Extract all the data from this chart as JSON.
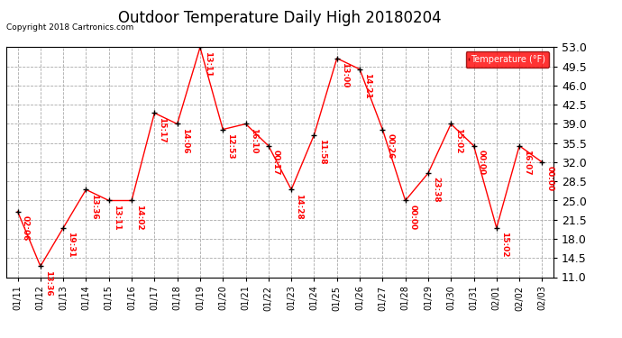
{
  "title": "Outdoor Temperature Daily High 20180204",
  "copyright": "Copyright 2018 Cartronics.com",
  "legend_label": "Temperature (°F)",
  "dates": [
    "01/11",
    "01/12",
    "01/13",
    "01/14",
    "01/15",
    "01/16",
    "01/17",
    "01/18",
    "01/19",
    "01/20",
    "01/21",
    "01/22",
    "01/23",
    "01/24",
    "01/25",
    "01/26",
    "01/27",
    "01/28",
    "01/29",
    "01/30",
    "01/31",
    "02/01",
    "02/02",
    "02/03"
  ],
  "values": [
    23.0,
    13.0,
    20.0,
    27.0,
    25.0,
    25.0,
    41.0,
    39.0,
    53.0,
    38.0,
    39.0,
    35.0,
    27.0,
    37.0,
    51.0,
    49.0,
    38.0,
    25.0,
    30.0,
    39.0,
    35.0,
    20.0,
    35.0,
    32.0
  ],
  "annotations": [
    "02:06",
    "13:36",
    "19:31",
    "13:36",
    "13:11",
    "14:02",
    "15:17",
    "14:06",
    "13:11",
    "12:53",
    "16:10",
    "00:17",
    "14:28",
    "11:58",
    "13:00",
    "14:21",
    "00:26",
    "00:00",
    "23:38",
    "15:02",
    "00:00",
    "15:02",
    "16:07",
    "00:00"
  ],
  "ylim": [
    11.0,
    53.0
  ],
  "yticks": [
    11.0,
    14.5,
    18.0,
    21.5,
    25.0,
    28.5,
    32.0,
    35.5,
    39.0,
    42.5,
    46.0,
    49.5,
    53.0
  ],
  "line_color": "red",
  "marker_color": "black",
  "annotation_color": "red",
  "bg_color": "white",
  "grid_color": "#aaaaaa",
  "title_fontsize": 12,
  "label_fontsize": 7,
  "annotation_fontsize": 6.5,
  "ytick_fontsize": 9
}
